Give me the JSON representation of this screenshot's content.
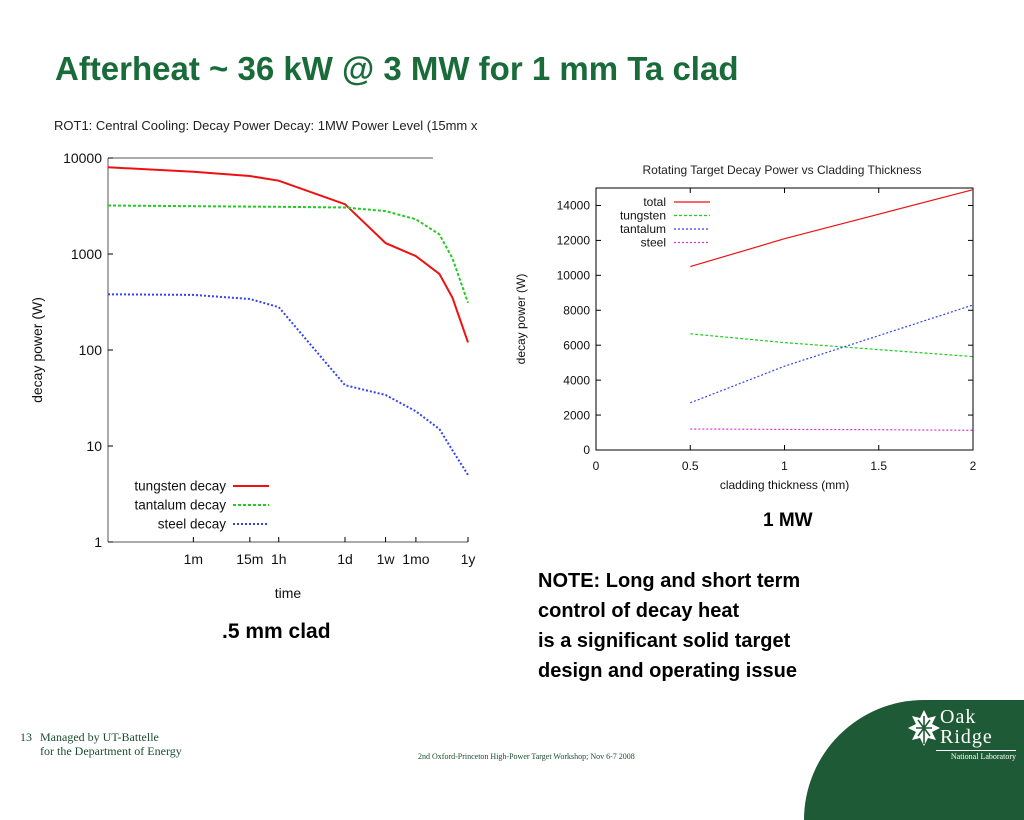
{
  "slide": {
    "title": "Afterheat ~ 36 kW @ 3 MW for 1 mm Ta clad",
    "caption_left": ".5 mm clad",
    "caption_right": "1 MW",
    "note_lines": [
      "NOTE: Long and short term",
      "control of decay heat",
      "is a significant solid target",
      "design and operating issue"
    ],
    "footer_number": "13",
    "footer_line1": "Managed by UT-Battelle",
    "footer_line2": "for the Department of Energy",
    "footer_center": "2nd Oxford-Princeton High-Power Target Workshop; Nov 6-7 2008",
    "logo_line1": "Oak",
    "logo_line2": "Ridge",
    "logo_line3": "National Laboratory",
    "colors": {
      "title": "#1a6b3a",
      "footer": "#1a4d2e",
      "logo_bg": "#1f5a36"
    }
  },
  "chart_data": [
    {
      "type": "line",
      "title": "ROT1: Central Cooling: Decay Power Decay: 1MW Power Level (15mm x",
      "xlabel": "time",
      "ylabel": "decay power (W)",
      "y_scale": "log",
      "ylim": [
        1,
        10000
      ],
      "y_ticks": [
        1,
        10,
        100,
        1000,
        10000
      ],
      "y_tick_labels": [
        "1",
        "10",
        "100",
        "1000",
        "10000"
      ],
      "x_scale": "log",
      "x_unit": "seconds",
      "xlim": [
        1,
        31536000
      ],
      "x_ticks": [
        60,
        900,
        3600,
        86400,
        604800,
        2592000,
        31536000
      ],
      "x_tick_labels": [
        "1m",
        "15m",
        "1h",
        "1d",
        "1w",
        "1mo",
        "1y"
      ],
      "legend_position": "bottom-left",
      "series": [
        {
          "name": "tungsten decay",
          "color": "#ee1111",
          "dash": "",
          "x": [
            1,
            60,
            900,
            3600,
            86400,
            604800,
            2592000,
            8000000,
            15000000,
            31536000
          ],
          "y": [
            8000,
            7200,
            6500,
            5800,
            3300,
            1300,
            950,
            620,
            350,
            120
          ]
        },
        {
          "name": "tantalum decay",
          "color": "#22cc22",
          "dash": "3,2",
          "x": [
            1,
            60,
            900,
            3600,
            86400,
            604800,
            2592000,
            8000000,
            15000000,
            31536000
          ],
          "y": [
            3200,
            3150,
            3120,
            3100,
            3050,
            2800,
            2300,
            1600,
            900,
            310
          ]
        },
        {
          "name": "steel decay",
          "color": "#3344ee",
          "dash": "2,2",
          "x": [
            1,
            60,
            900,
            3600,
            86400,
            604800,
            2592000,
            8000000,
            15000000,
            31536000
          ],
          "y": [
            380,
            375,
            340,
            280,
            43,
            34,
            23,
            15,
            9,
            5
          ]
        }
      ]
    },
    {
      "type": "line",
      "title": "Rotating Target Decay Power vs Cladding Thickness",
      "xlabel": "cladding thickness (mm)",
      "ylabel": "decay power (W)",
      "xlim": [
        0,
        2
      ],
      "ylim": [
        0,
        15000
      ],
      "x_ticks": [
        0,
        0.5,
        1,
        1.5,
        2
      ],
      "x_tick_labels": [
        "0",
        "0.5",
        "1",
        "1.5",
        "2"
      ],
      "y_ticks": [
        0,
        2000,
        4000,
        6000,
        8000,
        10000,
        12000,
        14000
      ],
      "y_tick_labels": [
        "0",
        "2000",
        "4000",
        "6000",
        "8000",
        "10000",
        "12000",
        "14000"
      ],
      "legend_position": "top-left",
      "series": [
        {
          "name": "total",
          "color": "#ee1111",
          "dash": "",
          "x": [
            0.5,
            1,
            1.5,
            2
          ],
          "y": [
            10500,
            12100,
            13500,
            14900
          ]
        },
        {
          "name": "tungsten",
          "color": "#22cc22",
          "dash": "3,2",
          "x": [
            0.5,
            1,
            1.5,
            2
          ],
          "y": [
            6650,
            6150,
            5750,
            5350
          ]
        },
        {
          "name": "tantalum",
          "color": "#3344ee",
          "dash": "2,2",
          "x": [
            0.5,
            1,
            1.5,
            2
          ],
          "y": [
            2700,
            4800,
            6550,
            8300
          ]
        },
        {
          "name": "steel",
          "color": "#dd33dd",
          "dash": "2,2",
          "x": [
            0.5,
            1,
            1.5,
            2
          ],
          "y": [
            1200,
            1180,
            1160,
            1130
          ]
        }
      ]
    }
  ]
}
